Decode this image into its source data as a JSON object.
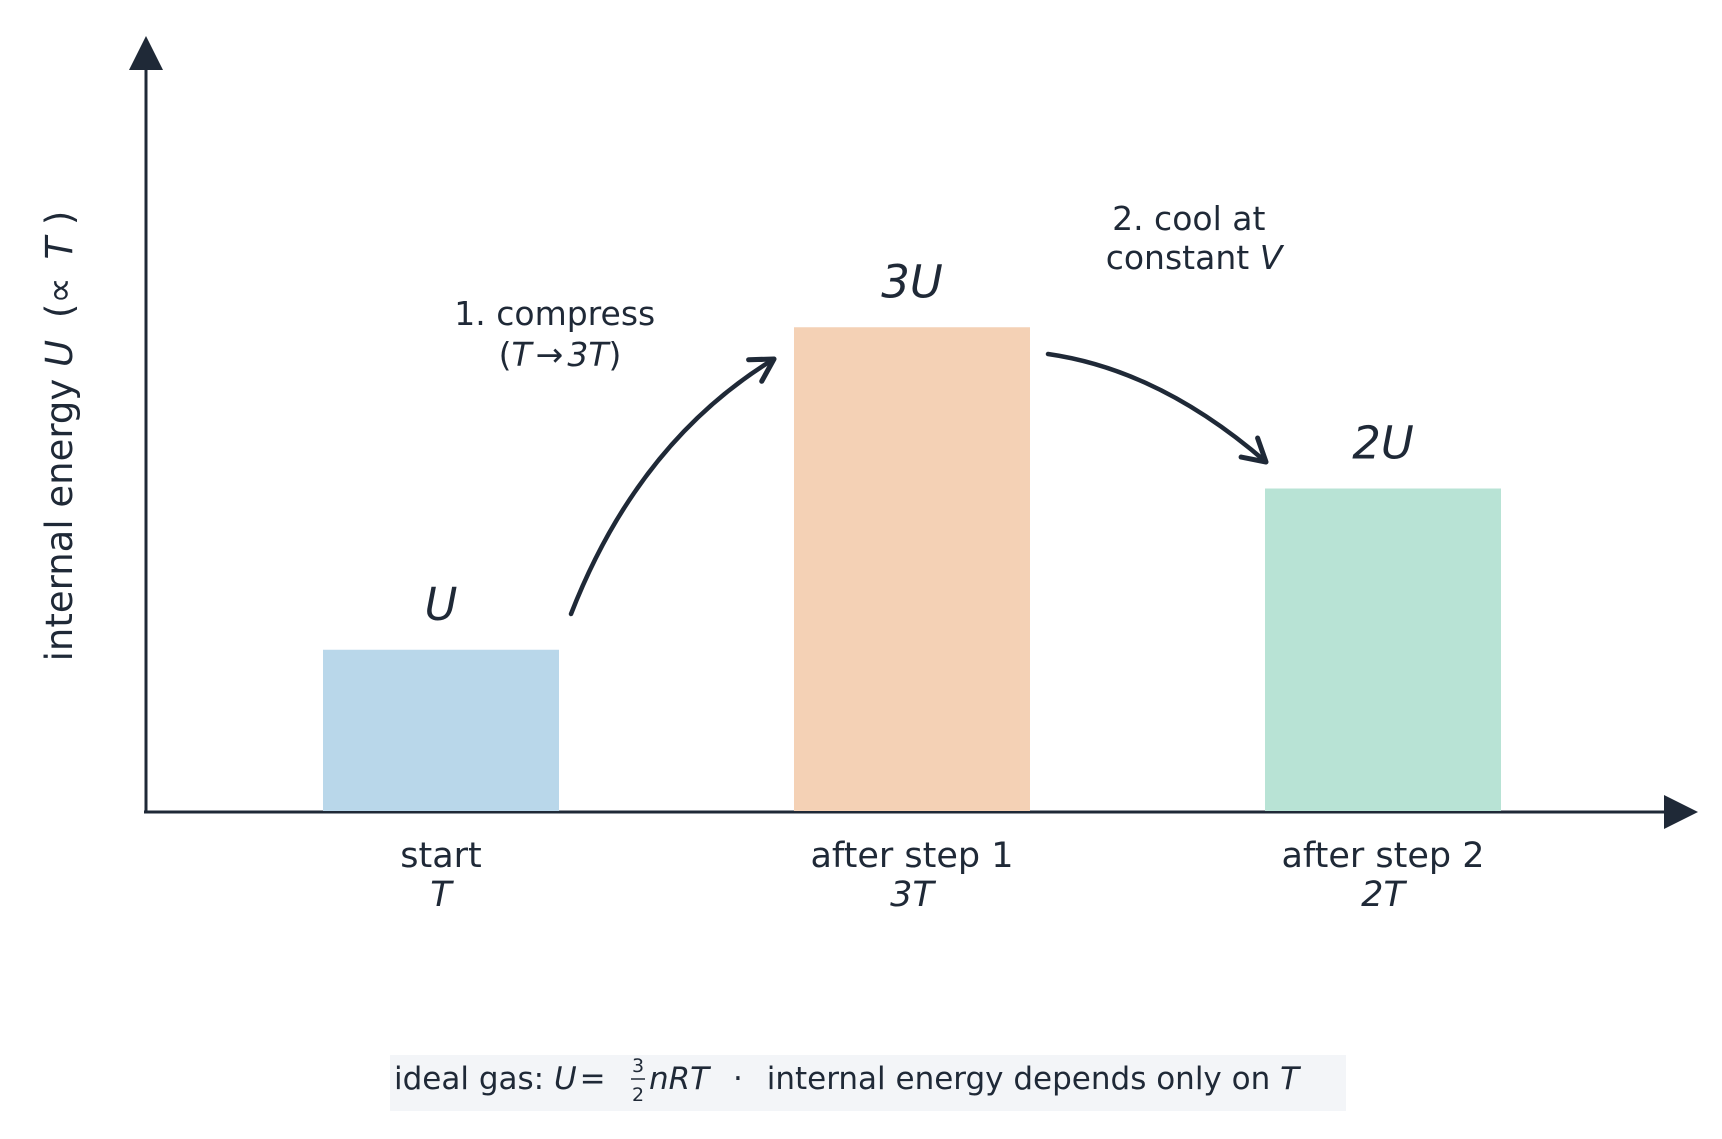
{
  "chart_data": {
    "type": "bar",
    "title": "",
    "xlabel": "",
    "ylabel": "internal energy",
    "ylabel_symbol": "U",
    "ylabel_suffix": "(∝",
    "ylabel_var": "T",
    "ylabel_close": ")",
    "categories": [
      {
        "label": "start",
        "temp": "T",
        "value_label": "U"
      },
      {
        "label": "after step 1",
        "temp": "3T",
        "value_label": "3U"
      },
      {
        "label": "after step 2",
        "temp": "2T",
        "value_label": "2U"
      }
    ],
    "values": [
      1,
      3,
      2
    ],
    "ylim": [
      0,
      4.8
    ],
    "colors": [
      "#b9d7ea",
      "#f4d1b5",
      "#b8e3d5"
    ],
    "axis_color": "#1f2937",
    "steps": [
      {
        "line1": "1. compress",
        "line2_open": "(",
        "line2_a": "T",
        "line2_arrow": "→",
        "line2_b": "3T",
        "line2_close": ")"
      },
      {
        "line1": "2. cool at",
        "line2_text": "constant",
        "line2_var": "V"
      }
    ],
    "footnote": {
      "prefix": "ideal gas:",
      "u": "U",
      "eq": "=",
      "frac_num": "3",
      "frac_den": "2",
      "nrt": "nRT",
      "dot": "·",
      "text": "internal energy depends only on",
      "t": "T",
      "background": "#f3f5f8"
    }
  }
}
